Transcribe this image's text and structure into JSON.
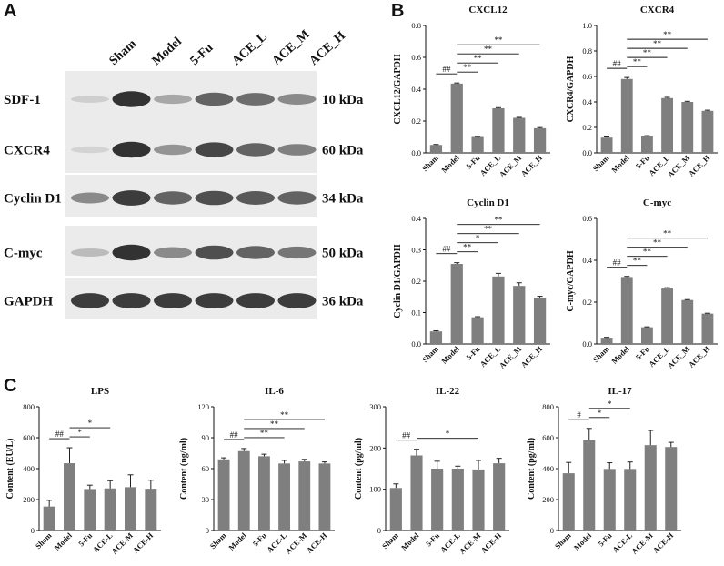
{
  "panels": {
    "A": "A",
    "B": "B",
    "C": "C"
  },
  "western_blot": {
    "lanes": [
      "Sham",
      "Model",
      "5-Fu",
      "ACE_L",
      "ACE_M",
      "ACE_H"
    ],
    "rows": [
      {
        "protein": "SDF-1",
        "size": "10 kDa",
        "intensity": [
          0.15,
          0.95,
          0.35,
          0.7,
          0.65,
          0.5
        ]
      },
      {
        "protein": "CXCR4",
        "size": "60 kDa",
        "intensity": [
          0.12,
          0.95,
          0.45,
          0.85,
          0.7,
          0.55
        ]
      },
      {
        "protein": "Cyclin D1",
        "size": "34 kDa",
        "intensity": [
          0.5,
          0.9,
          0.7,
          0.8,
          0.75,
          0.7
        ]
      },
      {
        "protein": "C-myc",
        "size": "50 kDa",
        "intensity": [
          0.25,
          0.95,
          0.5,
          0.8,
          0.7,
          0.6
        ]
      },
      {
        "protein": "GAPDH",
        "size": "36 kDa",
        "intensity": [
          0.9,
          0.9,
          0.9,
          0.9,
          0.9,
          0.9
        ]
      }
    ]
  },
  "chart_data": [
    {
      "type": "bar",
      "title": "CXCL12",
      "ylabel": "CXCL12/GAPDH",
      "categories": [
        "Sham",
        "Model",
        "5-Fu",
        "ACE_L",
        "ACE_M",
        "ACE_H"
      ],
      "values": [
        0.05,
        0.435,
        0.1,
        0.28,
        0.22,
        0.155
      ],
      "errors": [
        0.003,
        0.004,
        0.003,
        0.004,
        0.003,
        0.004
      ],
      "ylim": [
        0,
        0.8
      ],
      "yticks": [
        "0.0",
        "0.2",
        "0.4",
        "0.6",
        "0.8"
      ],
      "annotations": [
        {
          "from": "Sham",
          "to": "Model",
          "label": "##"
        },
        {
          "from": "Model",
          "to": "5-Fu",
          "label": "**"
        },
        {
          "from": "Model",
          "to": "ACE_L",
          "label": "**"
        },
        {
          "from": "Model",
          "to": "ACE_M",
          "label": "**"
        },
        {
          "from": "Model",
          "to": "ACE_H",
          "label": "**"
        }
      ]
    },
    {
      "type": "bar",
      "title": "CXCR4",
      "ylabel": "CXCR4/GAPDH",
      "categories": [
        "Sham",
        "Model",
        "5-Fu",
        "ACE_L",
        "ACE_M",
        "ACE_H"
      ],
      "values": [
        0.12,
        0.58,
        0.13,
        0.43,
        0.4,
        0.33
      ],
      "errors": [
        0.005,
        0.012,
        0.005,
        0.006,
        0.005,
        0.005
      ],
      "ylim": [
        0,
        1.0
      ],
      "yticks": [
        "0.0",
        "0.2",
        "0.4",
        "0.6",
        "0.8",
        "1.0"
      ],
      "annotations": [
        {
          "from": "Sham",
          "to": "Model",
          "label": "##"
        },
        {
          "from": "Model",
          "to": "5-Fu",
          "label": "**"
        },
        {
          "from": "Model",
          "to": "ACE_L",
          "label": "**"
        },
        {
          "from": "Model",
          "to": "ACE_M",
          "label": "**"
        },
        {
          "from": "Model",
          "to": "ACE_H",
          "label": "**"
        }
      ]
    },
    {
      "type": "bar",
      "title": "Cyclin D1",
      "ylabel": "Cyclin D1/GAPDH",
      "categories": [
        "Sham",
        "Model",
        "5-Fu",
        "ACE_L",
        "ACE_M",
        "ACE_H"
      ],
      "values": [
        0.04,
        0.255,
        0.085,
        0.215,
        0.185,
        0.148
      ],
      "errors": [
        0.002,
        0.004,
        0.002,
        0.01,
        0.01,
        0.004
      ],
      "ylim": [
        0,
        0.4
      ],
      "yticks": [
        "0.0",
        "0.1",
        "0.2",
        "0.3",
        "0.4"
      ],
      "annotations": [
        {
          "from": "Sham",
          "to": "Model",
          "label": "##"
        },
        {
          "from": "Model",
          "to": "5-Fu",
          "label": "**"
        },
        {
          "from": "Model",
          "to": "ACE_L",
          "label": "*"
        },
        {
          "from": "Model",
          "to": "ACE_M",
          "label": "**"
        },
        {
          "from": "Model",
          "to": "ACE_H",
          "label": "**"
        }
      ]
    },
    {
      "type": "bar",
      "title": "C-myc",
      "ylabel": "C-myc/GAPDH",
      "categories": [
        "Sham",
        "Model",
        "5-Fu",
        "ACE_L",
        "ACE_M",
        "ACE_H"
      ],
      "values": [
        0.03,
        0.32,
        0.08,
        0.265,
        0.21,
        0.145
      ],
      "errors": [
        0.002,
        0.003,
        0.002,
        0.004,
        0.002,
        0.002
      ],
      "ylim": [
        0,
        0.6
      ],
      "yticks": [
        "0.0",
        "0.2",
        "0.4",
        "0.6"
      ],
      "annotations": [
        {
          "from": "Sham",
          "to": "Model",
          "label": "##"
        },
        {
          "from": "Model",
          "to": "5-Fu",
          "label": "**"
        },
        {
          "from": "Model",
          "to": "ACE_L",
          "label": "**"
        },
        {
          "from": "Model",
          "to": "ACE_M",
          "label": "**"
        },
        {
          "from": "Model",
          "to": "ACE_H",
          "label": "**"
        }
      ]
    },
    {
      "type": "bar",
      "title": "LPS",
      "ylabel": "Content (EU/L)",
      "categories": [
        "Sham",
        "Model",
        "5-Fu",
        "ACE-L",
        "ACE-M",
        "ACE-H"
      ],
      "values": [
        155,
        435,
        268,
        272,
        280,
        270
      ],
      "errors": [
        40,
        100,
        25,
        50,
        80,
        55
      ],
      "ylim": [
        0,
        800
      ],
      "yticks": [
        "0",
        "200",
        "400",
        "600",
        "800"
      ],
      "annotations": [
        {
          "from": "Sham",
          "to": "Model",
          "label": "##"
        },
        {
          "from": "Model",
          "to": "5-Fu",
          "label": "*"
        },
        {
          "from": "Model",
          "to": "ACE-L",
          "label": "*"
        }
      ]
    },
    {
      "type": "bar",
      "title": "IL-6",
      "ylabel": "Content (ng/ml)",
      "categories": [
        "Sham",
        "Model",
        "5-Fu",
        "ACE-L",
        "ACE-M",
        "ACE-H"
      ],
      "values": [
        69,
        77,
        72,
        65,
        67,
        65
      ],
      "errors": [
        1.5,
        2.5,
        2.0,
        3.0,
        2.0,
        1.5
      ],
      "ylim": [
        0,
        120
      ],
      "yticks": [
        "0",
        "30",
        "60",
        "90",
        "120"
      ],
      "annotations": [
        {
          "from": "Sham",
          "to": "Model",
          "label": "##"
        },
        {
          "from": "Model",
          "to": "ACE-L",
          "label": "**"
        },
        {
          "from": "Model",
          "to": "ACE-M",
          "label": "**"
        },
        {
          "from": "Model",
          "to": "ACE-H",
          "label": "**"
        }
      ]
    },
    {
      "type": "bar",
      "title": "IL-22",
      "ylabel": "Content (pg/ml)",
      "categories": [
        "Sham",
        "Model",
        "5-Fu",
        "ACE-L",
        "ACE-M",
        "ACE-H"
      ],
      "values": [
        103,
        182,
        150,
        150,
        148,
        163
      ],
      "errors": [
        10,
        15,
        18,
        6,
        22,
        12
      ],
      "ylim": [
        0,
        300
      ],
      "yticks": [
        "0",
        "100",
        "200",
        "300"
      ],
      "annotations": [
        {
          "from": "Sham",
          "to": "Model",
          "label": "##"
        },
        {
          "from": "Model",
          "to": "ACE-M",
          "label": "*"
        }
      ]
    },
    {
      "type": "bar",
      "title": "IL-17",
      "ylabel": "Content (pg/ml)",
      "categories": [
        "Sham",
        "Model",
        "5-Fu",
        "ACE-L",
        "ACE-M",
        "ACE-H"
      ],
      "values": [
        370,
        585,
        398,
        398,
        552,
        540
      ],
      "errors": [
        70,
        75,
        40,
        45,
        95,
        30
      ],
      "ylim": [
        0,
        800
      ],
      "yticks": [
        "0",
        "200",
        "400",
        "600",
        "800"
      ],
      "annotations": [
        {
          "from": "Sham",
          "to": "Model",
          "label": "#"
        },
        {
          "from": "Model",
          "to": "5-Fu",
          "label": "*"
        },
        {
          "from": "Model",
          "to": "ACE-L",
          "label": "*"
        }
      ]
    }
  ]
}
